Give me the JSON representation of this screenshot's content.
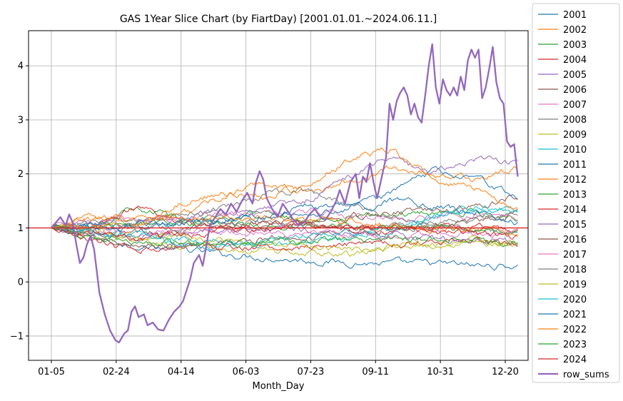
{
  "chart_data": {
    "type": "line",
    "title": "GAS 1Year Slice Chart (by FiartDay) [2001.01.01.~2024.06.11.]",
    "xlabel": "Month_Day",
    "ylabel": "",
    "x_tick_labels": [
      "01-05",
      "02-24",
      "04-14",
      "06-03",
      "07-23",
      "09-11",
      "10-31",
      "12-20"
    ],
    "x_range": [
      0,
      255
    ],
    "ylim": [
      -1.45,
      4.65
    ],
    "y_ticks": [
      -1,
      0,
      1,
      2,
      3,
      4
    ],
    "y_tick_labels": [
      "−1",
      "0",
      "1",
      "2",
      "3",
      "4"
    ],
    "grid": true,
    "legend_position": "outside-right",
    "reference_line": {
      "y": 1,
      "color": "#d62728"
    },
    "series": [
      {
        "name": "2001",
        "color": "#1f77b4",
        "values": [
          1.0,
          0.82,
          0.68,
          0.6,
          0.52,
          0.46,
          0.4,
          0.36,
          0.34,
          0.34,
          0.3,
          0.29
        ]
      },
      {
        "name": "2002",
        "color": "#ff7f0e",
        "values": [
          1.0,
          1.2,
          1.1,
          1.25,
          1.55,
          1.85,
          1.65,
          1.85,
          2.1,
          2.0,
          1.9,
          2.1
        ]
      },
      {
        "name": "2003",
        "color": "#2ca02c",
        "values": [
          1.0,
          1.0,
          1.45,
          1.15,
          1.2,
          1.3,
          1.15,
          1.2,
          1.25,
          1.3,
          1.3,
          1.2
        ]
      },
      {
        "name": "2004",
        "color": "#d62728",
        "values": [
          1.0,
          1.05,
          1.35,
          1.1,
          1.05,
          1.1,
          1.05,
          1.0,
          1.0,
          1.05,
          1.0,
          0.95
        ]
      },
      {
        "name": "2005",
        "color": "#9467bd",
        "values": [
          1.0,
          1.1,
          1.05,
          1.15,
          1.3,
          1.4,
          1.5,
          1.95,
          2.3,
          2.0,
          2.3,
          2.2
        ]
      },
      {
        "name": "2006",
        "color": "#8c564b",
        "values": [
          1.0,
          0.95,
          0.9,
          0.95,
          1.05,
          1.1,
          1.15,
          1.2,
          1.3,
          1.3,
          1.4,
          1.6
        ]
      },
      {
        "name": "2007",
        "color": "#e377c2",
        "values": [
          1.0,
          1.1,
          1.15,
          1.2,
          1.25,
          1.25,
          1.3,
          1.2,
          1.15,
          1.2,
          1.25,
          1.2
        ]
      },
      {
        "name": "2008",
        "color": "#7f7f7f",
        "values": [
          1.0,
          1.1,
          1.15,
          1.25,
          1.35,
          1.6,
          1.7,
          1.45,
          1.2,
          1.1,
          0.95,
          0.85
        ]
      },
      {
        "name": "2009",
        "color": "#bcbd22",
        "values": [
          1.0,
          0.85,
          0.75,
          0.7,
          0.65,
          0.6,
          0.55,
          0.5,
          0.6,
          0.7,
          0.75,
          0.7
        ]
      },
      {
        "name": "2010",
        "color": "#17becf",
        "values": [
          1.0,
          0.9,
          0.85,
          0.8,
          0.75,
          0.7,
          0.75,
          0.8,
          0.9,
          1.2,
          1.35,
          1.35
        ]
      },
      {
        "name": "2011",
        "color": "#1f77b4",
        "values": [
          1.0,
          1.05,
          1.0,
          1.1,
          1.15,
          1.2,
          1.4,
          1.35,
          1.6,
          2.05,
          1.9,
          1.6
        ]
      },
      {
        "name": "2012",
        "color": "#ff7f0e",
        "values": [
          1.0,
          1.15,
          1.2,
          1.45,
          1.65,
          1.6,
          1.75,
          2.25,
          2.45,
          1.9,
          1.75,
          1.35
        ]
      },
      {
        "name": "2013",
        "color": "#2ca02c",
        "values": [
          1.0,
          1.0,
          1.05,
          1.1,
          1.1,
          1.05,
          1.05,
          1.0,
          1.0,
          1.0,
          0.95,
          0.9
        ]
      },
      {
        "name": "2014",
        "color": "#d62728",
        "values": [
          1.0,
          0.75,
          0.6,
          0.6,
          0.6,
          0.65,
          0.65,
          0.7,
          0.7,
          0.75,
          0.75,
          0.72
        ]
      },
      {
        "name": "2015",
        "color": "#9467bd",
        "values": [
          1.0,
          0.9,
          0.85,
          0.9,
          0.95,
          1.0,
          0.95,
          0.9,
          0.85,
          0.8,
          0.78,
          0.75
        ]
      },
      {
        "name": "2016",
        "color": "#8c564b",
        "values": [
          1.0,
          0.8,
          0.7,
          0.65,
          0.7,
          0.8,
          0.85,
          0.9,
          0.95,
          1.0,
          1.1,
          1.3
        ]
      },
      {
        "name": "2017",
        "color": "#e377c2",
        "values": [
          1.0,
          0.95,
          0.9,
          0.95,
          0.92,
          0.9,
          0.88,
          0.85,
          0.85,
          0.88,
          0.9,
          0.92
        ]
      },
      {
        "name": "2018",
        "color": "#7f7f7f",
        "values": [
          1.0,
          1.0,
          1.05,
          1.0,
          1.05,
          1.1,
          1.05,
          1.0,
          1.0,
          1.05,
          1.15,
          1.3
        ]
      },
      {
        "name": "2019",
        "color": "#bcbd22",
        "values": [
          1.0,
          0.95,
          0.85,
          0.8,
          0.75,
          0.7,
          0.65,
          0.6,
          0.62,
          0.7,
          0.72,
          0.7
        ]
      },
      {
        "name": "2020",
        "color": "#17becf",
        "values": [
          1.0,
          0.9,
          0.85,
          0.7,
          0.65,
          0.75,
          0.85,
          0.9,
          1.0,
          1.2,
          1.4,
          1.25
        ]
      },
      {
        "name": "2021",
        "color": "#1f77b4",
        "values": [
          1.0,
          1.0,
          1.05,
          1.1,
          1.15,
          1.2,
          1.25,
          1.35,
          1.5,
          1.4,
          1.3,
          1.1
        ]
      },
      {
        "name": "2022",
        "color": "#ff7f0e",
        "values": [
          1.0,
          1.05,
          1.1,
          1.15,
          1.2,
          1.2,
          1.15,
          1.1,
          1.05,
          1.0,
          0.95,
          0.9
        ]
      },
      {
        "name": "2023",
        "color": "#2ca02c",
        "values": [
          1.0,
          0.85,
          0.75,
          0.7,
          0.7,
          0.72,
          0.75,
          0.78,
          0.8,
          0.8,
          0.78,
          0.75
        ]
      },
      {
        "name": "2024",
        "color": "#d62728",
        "values": [
          1.0,
          0.9,
          0.8,
          0.85,
          0.95,
          1.0,
          1.05,
          1.0,
          0.95,
          0.9,
          0.88,
          0.85
        ]
      },
      {
        "name": "row_sums",
        "color": "#9467bd",
        "bold": true,
        "points": [
          [
            0,
            1.0
          ],
          [
            5,
            1.2
          ],
          [
            8,
            1.05
          ],
          [
            10,
            1.25
          ],
          [
            12,
            1.1
          ],
          [
            14,
            0.7
          ],
          [
            16,
            0.35
          ],
          [
            18,
            0.45
          ],
          [
            20,
            0.7
          ],
          [
            22,
            0.85
          ],
          [
            24,
            0.6
          ],
          [
            27,
            -0.2
          ],
          [
            30,
            -0.6
          ],
          [
            33,
            -0.9
          ],
          [
            36,
            -1.08
          ],
          [
            38,
            -1.12
          ],
          [
            41,
            -0.95
          ],
          [
            43,
            -0.9
          ],
          [
            45,
            -0.55
          ],
          [
            47,
            -0.45
          ],
          [
            49,
            -0.65
          ],
          [
            52,
            -0.6
          ],
          [
            54,
            -0.8
          ],
          [
            57,
            -0.75
          ],
          [
            60,
            -0.88
          ],
          [
            63,
            -0.9
          ],
          [
            66,
            -0.7
          ],
          [
            69,
            -0.55
          ],
          [
            72,
            -0.45
          ],
          [
            74,
            -0.35
          ],
          [
            76,
            -0.15
          ],
          [
            78,
            0.05
          ],
          [
            80,
            0.35
          ],
          [
            83,
            0.5
          ],
          [
            85,
            0.3
          ],
          [
            87,
            0.65
          ],
          [
            89,
            1.05
          ],
          [
            92,
            1.2
          ],
          [
            95,
            1.35
          ],
          [
            98,
            1.25
          ],
          [
            101,
            1.45
          ],
          [
            104,
            1.3
          ],
          [
            107,
            1.5
          ],
          [
            110,
            1.65
          ],
          [
            113,
            1.45
          ],
          [
            115,
            1.85
          ],
          [
            117,
            2.05
          ],
          [
            119,
            1.9
          ],
          [
            121,
            1.55
          ],
          [
            124,
            1.35
          ],
          [
            127,
            1.2
          ],
          [
            130,
            1.45
          ],
          [
            133,
            1.3
          ],
          [
            136,
            1.15
          ],
          [
            139,
            1.05
          ],
          [
            142,
            1.1
          ],
          [
            145,
            1.25
          ],
          [
            148,
            1.35
          ],
          [
            151,
            1.2
          ],
          [
            154,
            1.15
          ],
          [
            157,
            1.3
          ],
          [
            160,
            1.5
          ],
          [
            162,
            1.7
          ],
          [
            165,
            1.45
          ],
          [
            168,
            1.85
          ],
          [
            171,
            2.0
          ],
          [
            173,
            1.55
          ],
          [
            175,
            1.95
          ],
          [
            177,
            1.85
          ],
          [
            179,
            2.2
          ],
          [
            181,
            1.85
          ],
          [
            183,
            1.55
          ],
          [
            186,
            2.0
          ],
          [
            188,
            2.3
          ],
          [
            190,
            3.3
          ],
          [
            192,
            3.0
          ],
          [
            194,
            3.35
          ],
          [
            196,
            3.5
          ],
          [
            198,
            3.6
          ],
          [
            200,
            3.45
          ],
          [
            202,
            3.1
          ],
          [
            204,
            3.3
          ],
          [
            206,
            3.05
          ],
          [
            208,
            2.95
          ],
          [
            210,
            3.45
          ],
          [
            212,
            4.0
          ],
          [
            214,
            4.4
          ],
          [
            216,
            3.6
          ],
          [
            218,
            3.3
          ],
          [
            220,
            3.75
          ],
          [
            222,
            3.55
          ],
          [
            224,
            3.45
          ],
          [
            226,
            3.6
          ],
          [
            228,
            3.45
          ],
          [
            230,
            3.8
          ],
          [
            232,
            3.55
          ],
          [
            234,
            4.1
          ],
          [
            236,
            4.3
          ],
          [
            238,
            4.15
          ],
          [
            240,
            4.3
          ],
          [
            242,
            3.4
          ],
          [
            244,
            3.6
          ],
          [
            246,
            3.95
          ],
          [
            248,
            4.35
          ],
          [
            250,
            3.7
          ],
          [
            252,
            3.4
          ],
          [
            254,
            3.3
          ],
          [
            256,
            2.6
          ],
          [
            258,
            2.5
          ],
          [
            260,
            2.55
          ],
          [
            262,
            1.95
          ]
        ]
      }
    ]
  }
}
